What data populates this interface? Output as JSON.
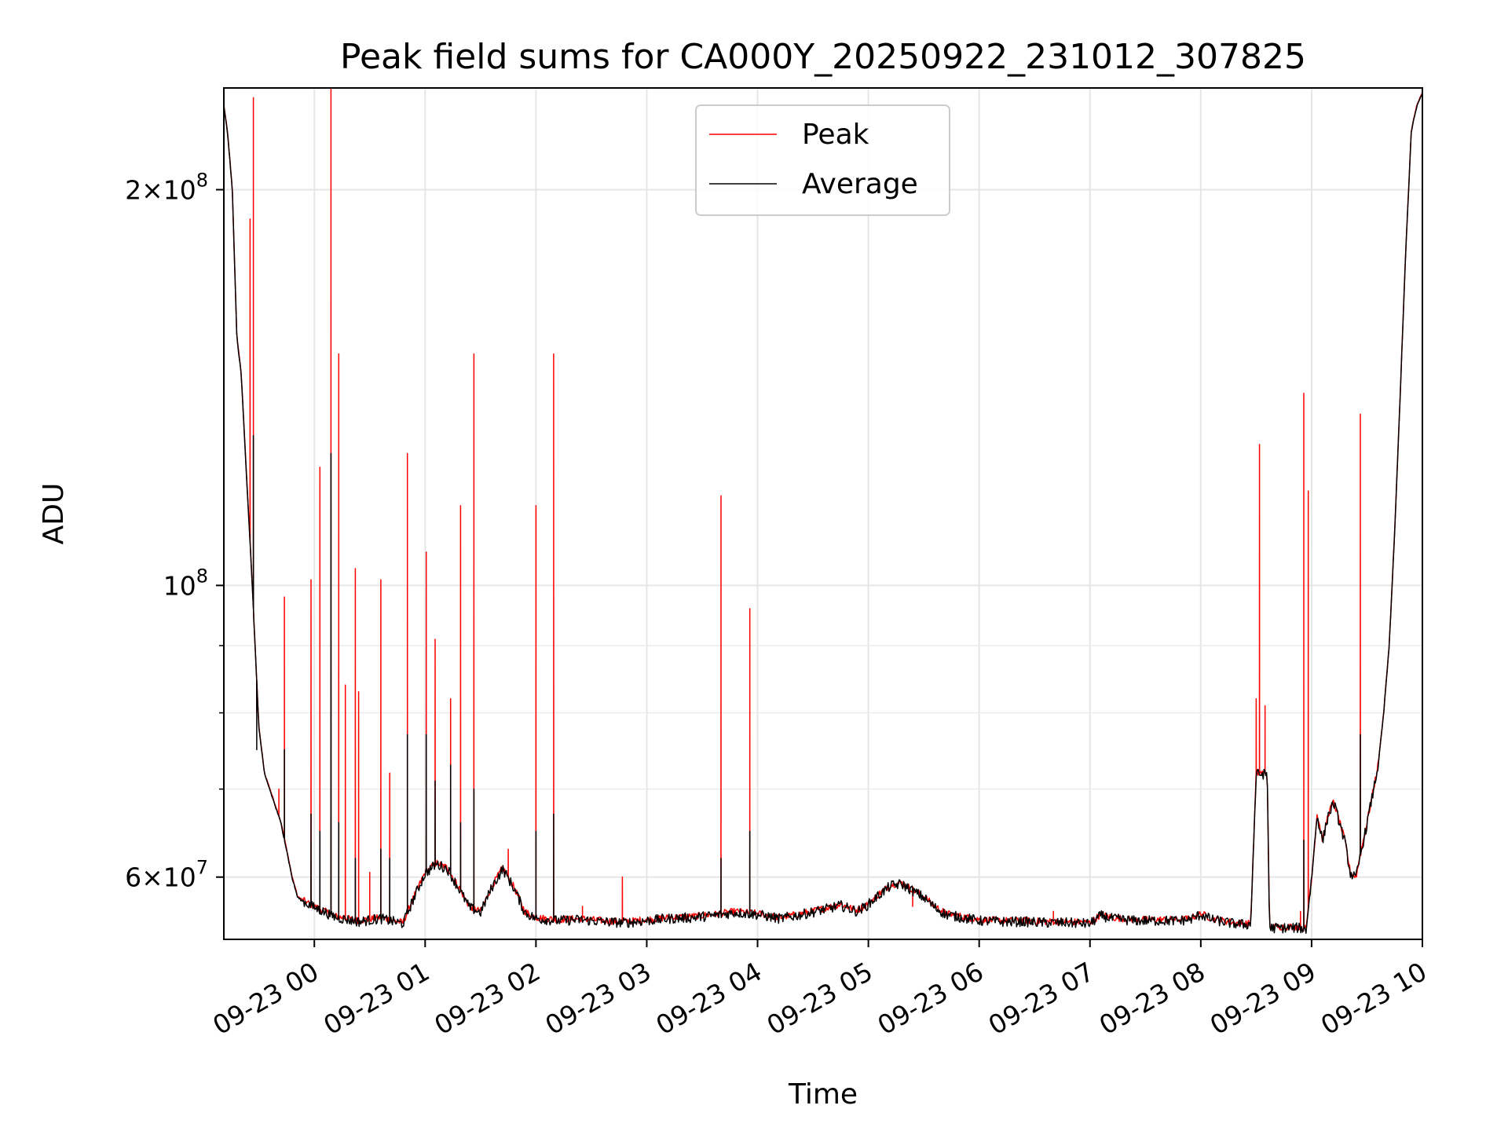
{
  "chart_data": {
    "type": "line",
    "title": "Peak field sums for CA000Y_20250922_231012_307825",
    "xlabel": "Time",
    "ylabel": "ADU",
    "yscale": "log",
    "ylim": [
      53800000,
      239000000
    ],
    "xlim": [
      -0.8167,
      10.0
    ],
    "grid": true,
    "legend_position": "top-center",
    "x_unit": "hours relative to 09-23 00:00",
    "x_ticks": [
      {
        "value": 0,
        "label": "09-23 00"
      },
      {
        "value": 1,
        "label": "09-23 01"
      },
      {
        "value": 2,
        "label": "09-23 02"
      },
      {
        "value": 3,
        "label": "09-23 03"
      },
      {
        "value": 4,
        "label": "09-23 04"
      },
      {
        "value": 5,
        "label": "09-23 05"
      },
      {
        "value": 6,
        "label": "09-23 06"
      },
      {
        "value": 7,
        "label": "09-23 07"
      },
      {
        "value": 8,
        "label": "09-23 08"
      },
      {
        "value": 9,
        "label": "09-23 09"
      },
      {
        "value": 10,
        "label": "09-23 10"
      }
    ],
    "y_ticks": [
      {
        "value": 60000000,
        "mantissa": "6",
        "exponent": "7"
      },
      {
        "value": 100000000,
        "mantissa": "",
        "exponent": "8"
      },
      {
        "value": 200000000,
        "mantissa": "2",
        "exponent": "8"
      }
    ],
    "y_minor_ticks": [
      70000000,
      80000000,
      90000000
    ],
    "series": [
      {
        "name": "Peak",
        "color": "#ff0000",
        "baseline_points": [
          [
            -0.8167,
            232000000
          ],
          [
            -0.78,
            220000000
          ],
          [
            -0.74,
            200000000
          ],
          [
            -0.7,
            155000000
          ],
          [
            -0.66,
            145000000
          ],
          [
            -0.62,
            125000000
          ],
          [
            -0.58,
            108000000
          ],
          [
            -0.55,
            96000000
          ],
          [
            -0.5,
            78000000
          ],
          [
            -0.45,
            72000000
          ],
          [
            -0.4,
            70000000
          ],
          [
            -0.3,
            66000000
          ],
          [
            -0.25,
            63000000
          ],
          [
            -0.2,
            60000000
          ],
          [
            -0.15,
            58000000
          ],
          [
            -0.1,
            57600000
          ],
          [
            0.0,
            57000000
          ],
          [
            0.2,
            56000000
          ],
          [
            0.4,
            55600000
          ],
          [
            0.6,
            55900000
          ],
          [
            0.8,
            55400000
          ],
          [
            0.9,
            58000000
          ],
          [
            1.0,
            60500000
          ],
          [
            1.1,
            61500000
          ],
          [
            1.2,
            61000000
          ],
          [
            1.3,
            59000000
          ],
          [
            1.4,
            57000000
          ],
          [
            1.5,
            56500000
          ],
          [
            1.6,
            59000000
          ],
          [
            1.7,
            61000000
          ],
          [
            1.8,
            59000000
          ],
          [
            1.9,
            56500000
          ],
          [
            2.0,
            55900000
          ],
          [
            2.2,
            55700000
          ],
          [
            2.4,
            55800000
          ],
          [
            2.6,
            55600000
          ],
          [
            2.8,
            55500000
          ],
          [
            3.0,
            55700000
          ],
          [
            3.2,
            55900000
          ],
          [
            3.4,
            56000000
          ],
          [
            3.6,
            56200000
          ],
          [
            3.8,
            56500000
          ],
          [
            4.0,
            56300000
          ],
          [
            4.2,
            55900000
          ],
          [
            4.4,
            56300000
          ],
          [
            4.6,
            56800000
          ],
          [
            4.75,
            57200000
          ],
          [
            4.9,
            56600000
          ],
          [
            5.0,
            57300000
          ],
          [
            5.1,
            58300000
          ],
          [
            5.2,
            59200000
          ],
          [
            5.3,
            59400000
          ],
          [
            5.4,
            58700000
          ],
          [
            5.5,
            58000000
          ],
          [
            5.6,
            57000000
          ],
          [
            5.7,
            56300000
          ],
          [
            5.8,
            56100000
          ],
          [
            6.0,
            55700000
          ],
          [
            6.2,
            55600000
          ],
          [
            6.4,
            55600000
          ],
          [
            6.6,
            55500000
          ],
          [
            6.8,
            55500000
          ],
          [
            7.0,
            55400000
          ],
          [
            7.1,
            56200000
          ],
          [
            7.2,
            55900000
          ],
          [
            7.4,
            55700000
          ],
          [
            7.6,
            55700000
          ],
          [
            7.8,
            55700000
          ],
          [
            7.9,
            55800000
          ],
          [
            8.0,
            56300000
          ],
          [
            8.1,
            55800000
          ],
          [
            8.3,
            55400000
          ],
          [
            8.45,
            55300000
          ],
          [
            8.5,
            72000000
          ],
          [
            8.6,
            72000000
          ],
          [
            8.62,
            55000000
          ],
          [
            8.9,
            55000000
          ],
          [
            8.95,
            54800000
          ],
          [
            9.0,
            60000000
          ],
          [
            9.05,
            67000000
          ],
          [
            9.1,
            64000000
          ],
          [
            9.15,
            67000000
          ],
          [
            9.2,
            68500000
          ],
          [
            9.3,
            64000000
          ],
          [
            9.35,
            60500000
          ],
          [
            9.4,
            60000000
          ],
          [
            9.45,
            63000000
          ],
          [
            9.5,
            66000000
          ],
          [
            9.6,
            73000000
          ],
          [
            9.65,
            80000000
          ],
          [
            9.7,
            90000000
          ],
          [
            9.75,
            110000000
          ],
          [
            9.8,
            140000000
          ],
          [
            9.85,
            180000000
          ],
          [
            9.9,
            222000000
          ],
          [
            9.95,
            232000000
          ],
          [
            10.0,
            237000000
          ]
        ],
        "spikes": [
          [
            -0.55,
            235000000
          ],
          [
            -0.58,
            190000000
          ],
          [
            -0.52,
            80000000
          ],
          [
            -0.32,
            70000000
          ],
          [
            -0.27,
            98000000
          ],
          [
            -0.03,
            101000000
          ],
          [
            0.05,
            123000000
          ],
          [
            0.15,
            239000000
          ],
          [
            0.22,
            150000000
          ],
          [
            0.28,
            84000000
          ],
          [
            0.37,
            103000000
          ],
          [
            0.4,
            83000000
          ],
          [
            0.5,
            60500000
          ],
          [
            0.6,
            101000000
          ],
          [
            0.68,
            72000000
          ],
          [
            0.84,
            126000000
          ],
          [
            1.01,
            106000000
          ],
          [
            1.09,
            91000000
          ],
          [
            1.23,
            82000000
          ],
          [
            1.32,
            115000000
          ],
          [
            1.44,
            150000000
          ],
          [
            1.75,
            63000000
          ],
          [
            2.0,
            115000000
          ],
          [
            2.16,
            150000000
          ],
          [
            2.42,
            57000000
          ],
          [
            2.78,
            60000000
          ],
          [
            3.67,
            117000000
          ],
          [
            3.93,
            96000000
          ],
          [
            5.4,
            57000000
          ],
          [
            6.67,
            56500000
          ],
          [
            8.5,
            82000000
          ],
          [
            8.53,
            128000000
          ],
          [
            8.58,
            81000000
          ],
          [
            8.9,
            56500000
          ],
          [
            8.93,
            140000000
          ],
          [
            8.97,
            118000000
          ],
          [
            9.44,
            135000000
          ]
        ]
      },
      {
        "name": "Average",
        "color": "#000000",
        "spikes": [
          [
            -0.55,
            130000000
          ],
          [
            -0.52,
            75000000
          ],
          [
            -0.27,
            75000000
          ],
          [
            -0.03,
            67000000
          ],
          [
            0.05,
            65000000
          ],
          [
            0.15,
            126000000
          ],
          [
            0.22,
            66000000
          ],
          [
            0.37,
            62000000
          ],
          [
            0.6,
            63000000
          ],
          [
            0.68,
            62000000
          ],
          [
            0.84,
            77000000
          ],
          [
            1.01,
            77000000
          ],
          [
            1.09,
            71000000
          ],
          [
            1.23,
            73000000
          ],
          [
            1.32,
            66000000
          ],
          [
            1.44,
            70000000
          ],
          [
            2.0,
            65000000
          ],
          [
            2.16,
            67000000
          ],
          [
            3.67,
            62000000
          ],
          [
            3.93,
            65000000
          ],
          [
            8.93,
            64000000
          ],
          [
            9.44,
            77000000
          ]
        ]
      }
    ]
  }
}
